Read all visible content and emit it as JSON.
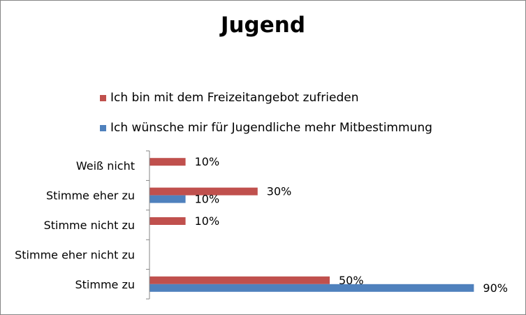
{
  "chart_data": {
    "type": "bar",
    "orientation": "horizontal",
    "title": "Jugend",
    "categories": [
      "Weiß nicht",
      "Stimme eher zu",
      "Stimme nicht zu",
      "Stimme eher nicht zu",
      "Stimme zu"
    ],
    "series": [
      {
        "name": "Ich bin mit dem Freizeitangebot zufrieden",
        "color": "#C0504D",
        "values": [
          10,
          30,
          10,
          null,
          50
        ],
        "labels": [
          "10%",
          "30%",
          "10%",
          "",
          "50%"
        ]
      },
      {
        "name": "Ich wünsche mir für Jugendliche mehr Mitbestimmung",
        "color": "#4F81BD",
        "values": [
          null,
          10,
          null,
          null,
          90
        ],
        "labels": [
          "",
          "10%",
          "",
          "",
          "90%"
        ]
      }
    ],
    "xlim": [
      0,
      100
    ],
    "unit": "%",
    "legend": "top",
    "grid": false
  }
}
